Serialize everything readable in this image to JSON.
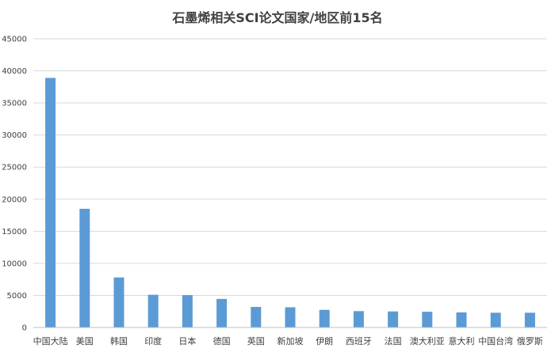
{
  "chart_data": {
    "type": "bar",
    "title": "石墨烯相关SCI论文国家/地区前15名",
    "xlabel": "",
    "ylabel": "",
    "categories": [
      "中国大陆",
      "美国",
      "韩国",
      "印度",
      "日本",
      "德国",
      "英国",
      "新加坡",
      "伊朗",
      "西班牙",
      "法国",
      "澳大利亚",
      "意大利",
      "中国台湾",
      "俄罗斯"
    ],
    "values": [
      38900,
      18500,
      7800,
      5100,
      5050,
      4450,
      3200,
      3150,
      2750,
      2550,
      2500,
      2450,
      2350,
      2300,
      2300
    ],
    "ylim": [
      0,
      45000
    ],
    "yticks": [
      "0",
      "5000",
      "10000",
      "15000",
      "20000",
      "25000",
      "30000",
      "35000",
      "40000",
      "45000"
    ],
    "grid": true,
    "legend": "none",
    "bar_color": "#5b9bd5"
  }
}
